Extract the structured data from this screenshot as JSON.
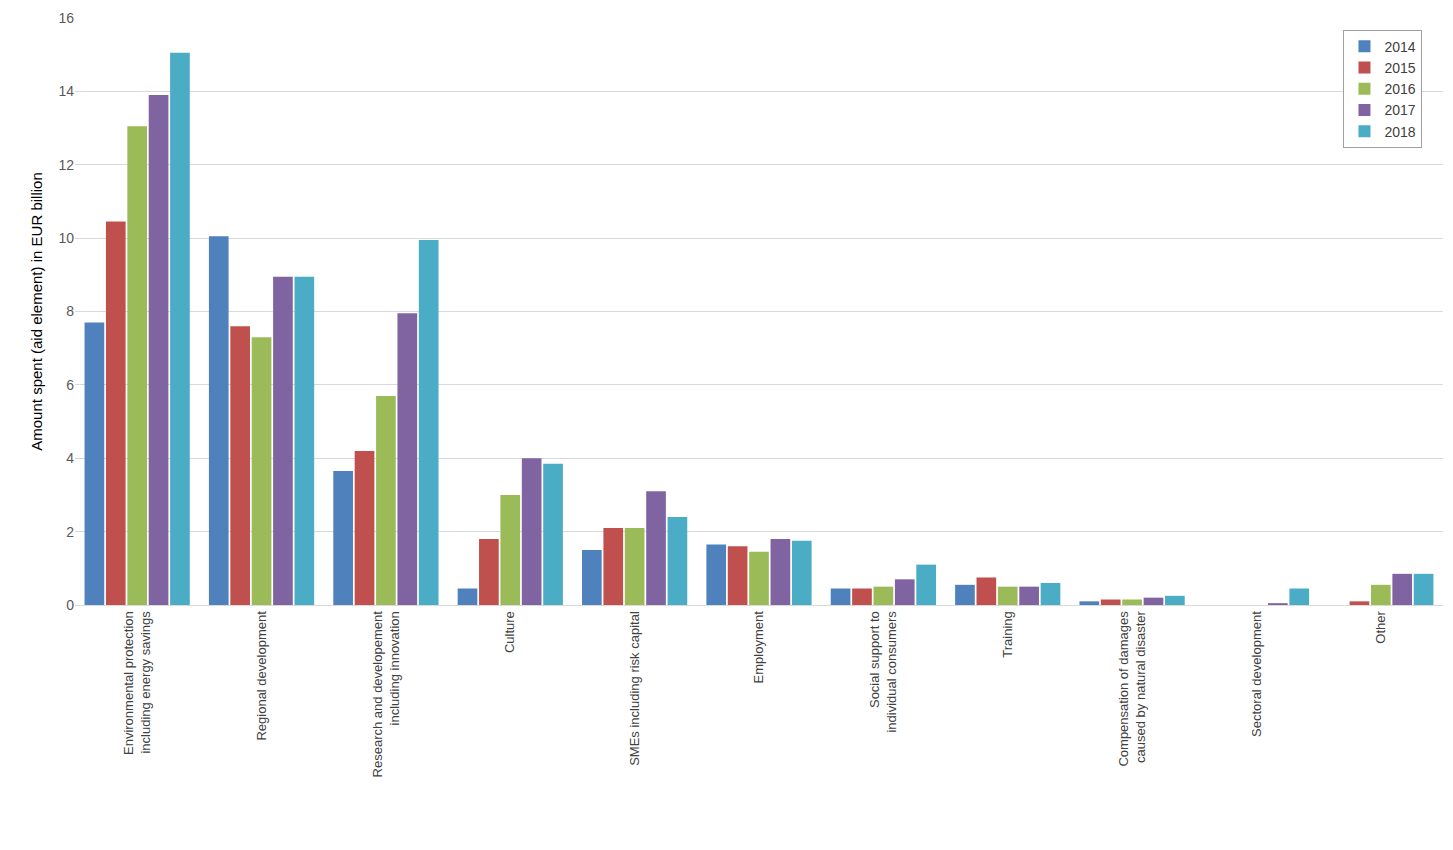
{
  "chart_data": {
    "type": "bar",
    "y_label": "Amount spent (aid element) in EUR billion",
    "categories": [
      "Environmental protection\nincluding energy savings",
      "Regional development",
      "Research and developement\nincluding innovation",
      "Culture",
      "SMEs including risk capital",
      "Employment",
      "Social support to\nindividual consumers",
      "Training",
      "Compensation of damages\ncaused by natural disaster",
      "Sectoral development",
      "Other"
    ],
    "series": [
      {
        "name": "2014",
        "color": "#4f81bd",
        "values": [
          7.7,
          10.05,
          3.65,
          0.45,
          1.5,
          1.65,
          0.45,
          0.55,
          0.1,
          0,
          0
        ]
      },
      {
        "name": "2015",
        "color": "#c0504d",
        "values": [
          10.45,
          7.6,
          4.2,
          1.8,
          2.1,
          1.6,
          0.45,
          0.75,
          0.15,
          0,
          0.1
        ]
      },
      {
        "name": "2016",
        "color": "#9bbb59",
        "values": [
          13.05,
          7.3,
          5.7,
          3.0,
          2.1,
          1.45,
          0.5,
          0.5,
          0.15,
          0,
          0.55
        ]
      },
      {
        "name": "2017",
        "color": "#8064a2",
        "values": [
          13.9,
          8.95,
          7.95,
          4.0,
          3.1,
          1.8,
          0.7,
          0.5,
          0.2,
          0.05,
          0.85
        ]
      },
      {
        "name": "2018",
        "color": "#4bacc6",
        "values": [
          15.05,
          8.95,
          9.95,
          3.85,
          2.4,
          1.75,
          1.1,
          0.6,
          0.25,
          0.45,
          0.85
        ]
      }
    ],
    "ylim": [
      0,
      16
    ],
    "yticks": [
      0,
      2,
      4,
      6,
      8,
      10,
      12,
      14,
      16
    ],
    "grid": true,
    "legend": "top-right"
  }
}
